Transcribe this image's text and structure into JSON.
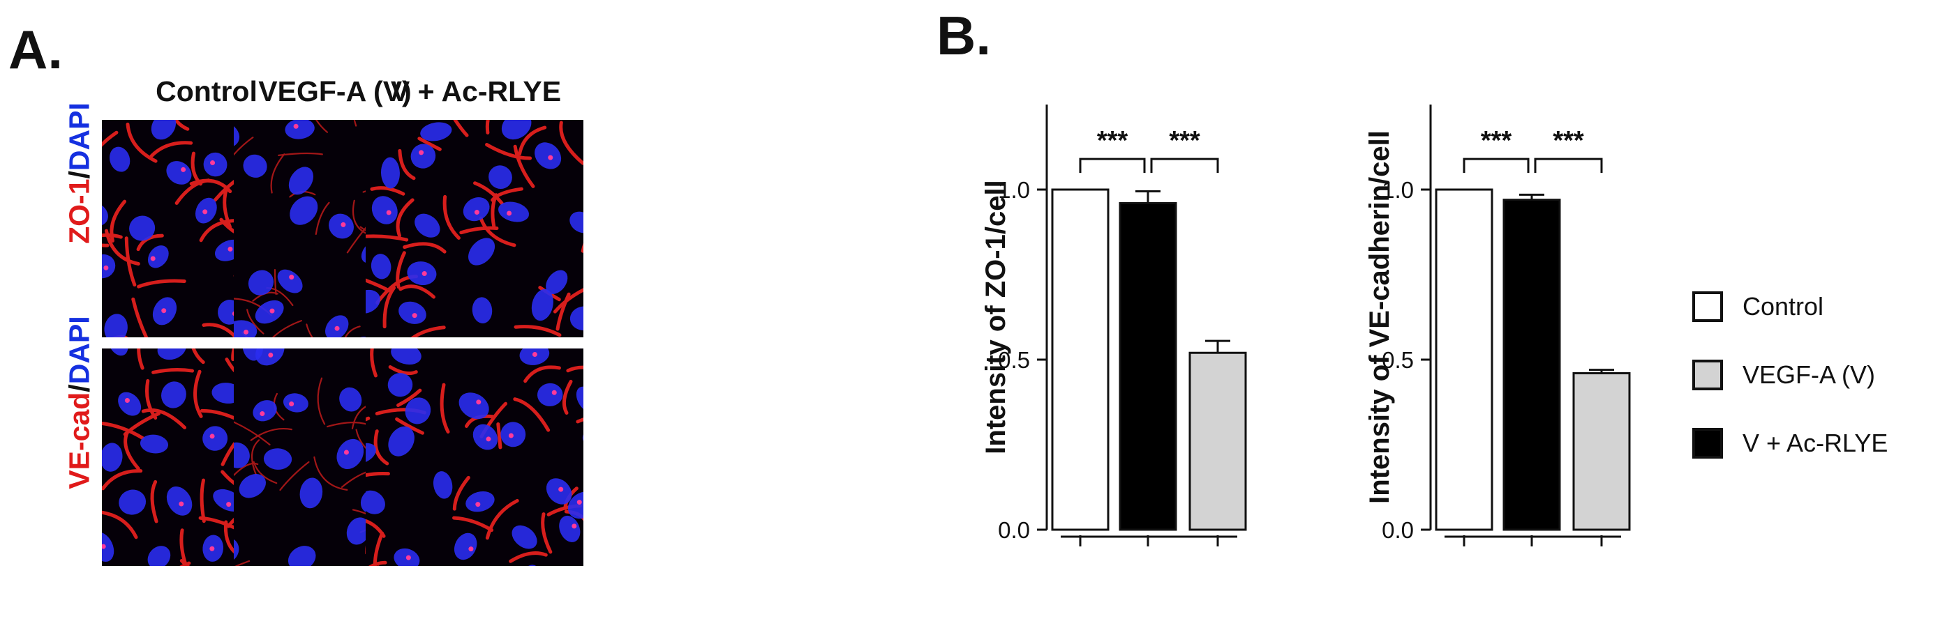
{
  "panel_a": {
    "letter": "A.",
    "columns": [
      "Control",
      "VEGF-A (V)",
      "V + Ac-RLYE"
    ],
    "rows": [
      {
        "marker": "ZO-1",
        "separator": "/",
        "stain": "DAPI",
        "intensity": [
          1.0,
          0.52,
          0.96
        ]
      },
      {
        "marker": "VE-cad",
        "separator": "/",
        "stain": "DAPI",
        "intensity": [
          1.0,
          0.46,
          0.97
        ]
      }
    ],
    "colors": {
      "marker": "#e01a1a",
      "stain": "#1530e0"
    }
  },
  "panel_b": {
    "letter": "B."
  },
  "legend": [
    {
      "label": "Control",
      "color": "#ffffff"
    },
    {
      "label": "VEGF-A (V)",
      "color": "#d3d3d3"
    },
    {
      "label": "V + Ac-RLYE",
      "color": "#000000"
    }
  ],
  "chart_data": [
    {
      "type": "bar",
      "categories": [
        "Control",
        "VEGF-A (V)",
        "V + Ac-RLYE"
      ],
      "bar_order": [
        "Control",
        "V + Ac-RLYE",
        "VEGF-A (V)"
      ],
      "values": [
        1.0,
        0.52,
        0.96
      ],
      "errors": [
        0,
        0.035,
        0.035
      ],
      "colors": [
        "#ffffff",
        "#000000",
        "#d3d3d3"
      ],
      "ylabel": "Intensity of ZO-1/cell",
      "ylim": [
        0,
        1.25
      ],
      "yticks": [
        "0.0",
        "0.5",
        "1.0"
      ],
      "ytick_values": [
        0,
        0.5,
        1.0
      ],
      "significance": [
        {
          "between": [
            0,
            1
          ],
          "label": "***"
        },
        {
          "between": [
            1,
            2
          ],
          "label": "***"
        }
      ],
      "grid": false
    },
    {
      "type": "bar",
      "categories": [
        "Control",
        "VEGF-A (V)",
        "V + Ac-RLYE"
      ],
      "bar_order": [
        "Control",
        "V + Ac-RLYE",
        "VEGF-A (V)"
      ],
      "values": [
        1.0,
        0.46,
        0.97
      ],
      "errors": [
        0,
        0.01,
        0.015
      ],
      "colors": [
        "#ffffff",
        "#000000",
        "#d3d3d3"
      ],
      "ylabel": "Intensity of VE-cadherin/cell",
      "ylim": [
        0,
        1.25
      ],
      "yticks": [
        "0.0",
        "0.5",
        "1.0"
      ],
      "ytick_values": [
        0,
        0.5,
        1.0
      ],
      "significance": [
        {
          "between": [
            0,
            1
          ],
          "label": "***"
        },
        {
          "between": [
            1,
            2
          ],
          "label": "***"
        }
      ],
      "grid": false
    }
  ]
}
